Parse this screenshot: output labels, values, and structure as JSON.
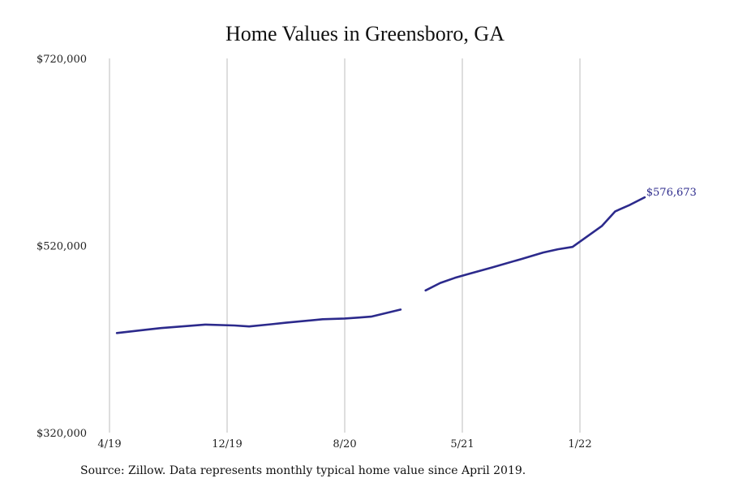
{
  "chart_data": {
    "type": "line",
    "title": "Home Values in Greensboro, GA",
    "xlabel": "",
    "ylabel": "",
    "ylim": [
      320000,
      720000
    ],
    "y_ticks": [
      {
        "value": 320000,
        "label": "$320,000"
      },
      {
        "value": 520000,
        "label": "$520,000"
      },
      {
        "value": 720000,
        "label": "$720,000"
      }
    ],
    "x_ticks": [
      {
        "value": 0,
        "label": "4/19"
      },
      {
        "value": 8,
        "label": "12/19"
      },
      {
        "value": 16,
        "label": "8/20"
      },
      {
        "value": 24,
        "label": "5/21"
      },
      {
        "value": 32,
        "label": "1/22"
      }
    ],
    "grid": "vertical",
    "series": [
      {
        "color": "#2c2a8c",
        "segments": [
          [
            {
              "x": 0.5,
              "y": 426500
            },
            {
              "x": 2.5,
              "y": 430000
            },
            {
              "x": 3.5,
              "y": 431800
            },
            {
              "x": 6.5,
              "y": 435500
            },
            {
              "x": 8.5,
              "y": 434500
            },
            {
              "x": 9.5,
              "y": 433500
            },
            {
              "x": 11,
              "y": 435800
            },
            {
              "x": 12,
              "y": 437500
            },
            {
              "x": 14.5,
              "y": 441200
            },
            {
              "x": 16,
              "y": 442000
            },
            {
              "x": 17,
              "y": 443000
            },
            {
              "x": 17.8,
              "y": 444000
            },
            {
              "x": 19.8,
              "y": 451500
            }
          ],
          [
            {
              "x": 21.5,
              "y": 472000
            },
            {
              "x": 22.5,
              "y": 480000
            },
            {
              "x": 23.5,
              "y": 485500
            },
            {
              "x": 24.5,
              "y": 490000
            },
            {
              "x": 26,
              "y": 496500
            },
            {
              "x": 28,
              "y": 505500
            },
            {
              "x": 29.5,
              "y": 512500
            },
            {
              "x": 30.5,
              "y": 516000
            },
            {
              "x": 31.5,
              "y": 518500
            },
            {
              "x": 33.5,
              "y": 541000
            },
            {
              "x": 34.4,
              "y": 556500
            },
            {
              "x": 35.4,
              "y": 563500
            },
            {
              "x": 36.4,
              "y": 571500
            }
          ]
        ],
        "end_label": "$576,673"
      }
    ]
  },
  "footer": {
    "source": "Source: Zillow. Data represents monthly typical home value since April 2019."
  }
}
